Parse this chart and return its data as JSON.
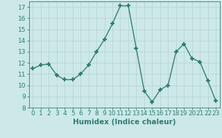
{
  "x": [
    0,
    1,
    2,
    3,
    4,
    5,
    6,
    7,
    8,
    9,
    10,
    11,
    12,
    13,
    14,
    15,
    16,
    17,
    18,
    19,
    20,
    21,
    22,
    23
  ],
  "y": [
    11.5,
    11.8,
    11.9,
    10.9,
    10.5,
    10.5,
    11.0,
    11.8,
    13.0,
    14.1,
    15.5,
    17.1,
    17.1,
    13.3,
    9.5,
    8.5,
    9.6,
    10.0,
    13.0,
    13.7,
    12.4,
    12.1,
    10.4,
    8.6
  ],
  "line_color": "#2e7d6e",
  "marker": "+",
  "marker_size": 4,
  "bg_color": "#cce8e8",
  "grid_color": "#b8d4d4",
  "xlabel": "Humidex (Indice chaleur)",
  "ylim": [
    8,
    17.5
  ],
  "xlim": [
    -0.5,
    23.5
  ],
  "yticks": [
    8,
    9,
    10,
    11,
    12,
    13,
    14,
    15,
    16,
    17
  ],
  "xticks": [
    0,
    1,
    2,
    3,
    4,
    5,
    6,
    7,
    8,
    9,
    10,
    11,
    12,
    13,
    14,
    15,
    16,
    17,
    18,
    19,
    20,
    21,
    22,
    23
  ],
  "tick_fontsize": 6.5,
  "xlabel_fontsize": 7.5,
  "axis_color": "#2e7d6e",
  "spine_color": "#2e7d6e",
  "linewidth": 1.0,
  "marker_thickness": 1.5
}
